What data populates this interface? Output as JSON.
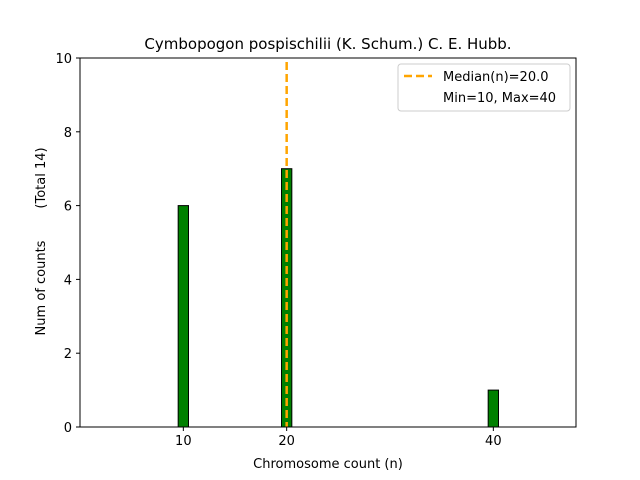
{
  "chart_data": {
    "type": "bar",
    "title": "Cymbopogon pospischilii (K. Schum.) C. E. Hubb.",
    "xlabel": "Chromosome count (n)",
    "ylabel": "Num of counts",
    "ylabel_total": "(Total 14)",
    "xlim": [
      0,
      48
    ],
    "ylim": [
      0,
      10
    ],
    "xticks": [
      10,
      20,
      40
    ],
    "yticks": [
      0,
      2,
      4,
      6,
      8,
      10
    ],
    "bar_width": 1,
    "bar_color": "#008000",
    "bar_edge_color": "#000000",
    "series": [
      {
        "x": [
          10,
          20,
          40
        ],
        "values": [
          6,
          7,
          1
        ]
      }
    ],
    "median_line": {
      "x": 20.0,
      "color": "#FFA500",
      "style": "dashed"
    },
    "legend": {
      "position": "top-right",
      "entries": [
        "Median(n)=20.0",
        "Min=10, Max=40"
      ]
    },
    "grid": false
  }
}
